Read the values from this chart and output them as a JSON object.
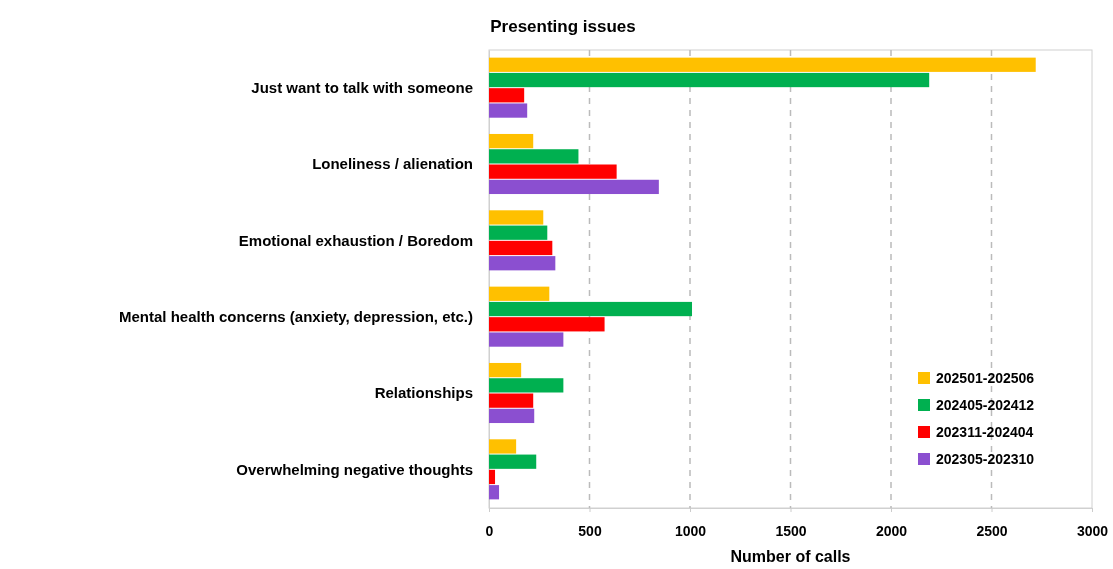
{
  "chart_data": {
    "type": "bar",
    "orientation": "horizontal",
    "title": "Presenting issues",
    "xlabel": "Number of calls",
    "categories": [
      "Just want to talk with someone",
      "Loneliness / alienation",
      "Emotional exhaustion / Boredom",
      "Mental health concerns (anxiety, depression, etc.)",
      "Relationships",
      "Overwhelming negative thoughts"
    ],
    "series": [
      {
        "name": "202501-202506",
        "color": "#ffc000",
        "values": [
          2720,
          220,
          270,
          300,
          160,
          135
        ]
      },
      {
        "name": "202405-202412",
        "color": "#00b050",
        "values": [
          2190,
          445,
          290,
          1010,
          370,
          235
        ]
      },
      {
        "name": "202311-202404",
        "color": "#ff0000",
        "values": [
          175,
          635,
          315,
          575,
          220,
          30
        ]
      },
      {
        "name": "202305-202310",
        "color": "#8b4fd0",
        "values": [
          190,
          845,
          330,
          370,
          225,
          50
        ]
      }
    ],
    "xlim": [
      0,
      3000
    ],
    "xticks": [
      0,
      500,
      1000,
      1500,
      2000,
      2500,
      3000
    ],
    "grid": "x",
    "legend": "bottom right"
  }
}
